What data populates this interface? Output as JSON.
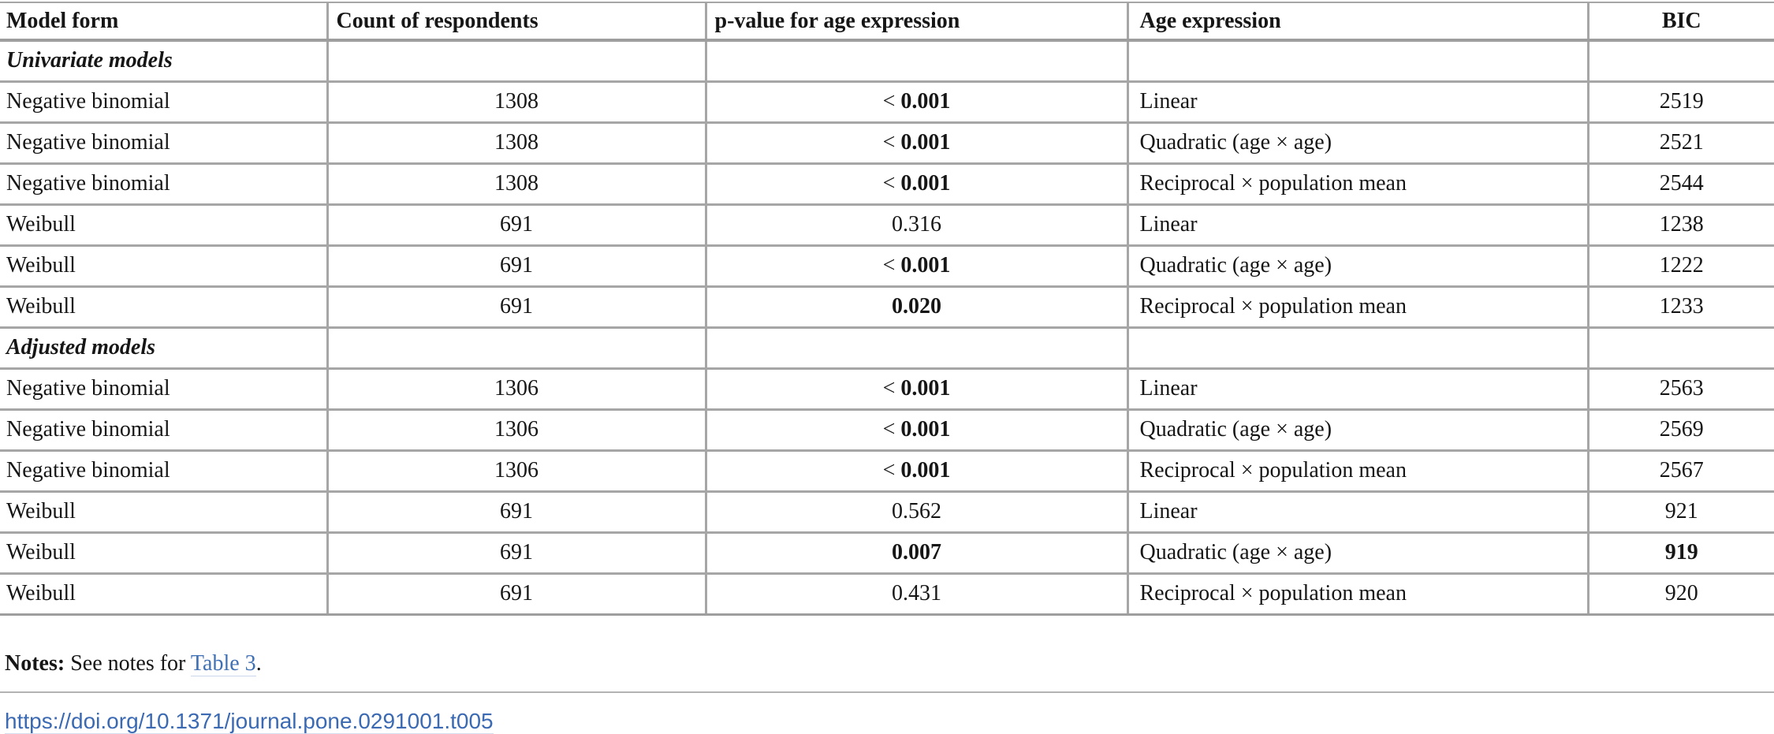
{
  "colors": {
    "border_gray": "#a6a6a6",
    "text": "#161616",
    "link_blue": "#4070b4",
    "doi_blue": "#3b6ab3",
    "background": "#ffffff"
  },
  "table": {
    "columns": [
      {
        "id": "model",
        "label": "Model form"
      },
      {
        "id": "count",
        "label": "Count of respondents"
      },
      {
        "id": "p",
        "label": "p-value for age expression"
      },
      {
        "id": "age",
        "label": "Age expression"
      },
      {
        "id": "bic",
        "label": "BIC"
      }
    ],
    "rows": [
      {
        "type": "section",
        "label": "Univariate models"
      },
      {
        "type": "data",
        "model": "Negative binomial",
        "count": "1308",
        "p": {
          "prefix": "< ",
          "value": "0.001",
          "bold": true
        },
        "age": "Linear",
        "bic": {
          "value": "2519",
          "bold": false
        }
      },
      {
        "type": "data",
        "model": "Negative binomial",
        "count": "1308",
        "p": {
          "prefix": "< ",
          "value": "0.001",
          "bold": true
        },
        "age": "Quadratic (age × age)",
        "bic": {
          "value": "2521",
          "bold": false
        }
      },
      {
        "type": "data",
        "model": "Negative binomial",
        "count": "1308",
        "p": {
          "prefix": "< ",
          "value": "0.001",
          "bold": true
        },
        "age": "Reciprocal × population mean",
        "bic": {
          "value": "2544",
          "bold": false
        }
      },
      {
        "type": "data",
        "model": "Weibull",
        "count": "691",
        "p": {
          "prefix": "",
          "value": "0.316",
          "bold": false
        },
        "age": "Linear",
        "bic": {
          "value": "1238",
          "bold": false
        }
      },
      {
        "type": "data",
        "model": "Weibull",
        "count": "691",
        "p": {
          "prefix": "< ",
          "value": "0.001",
          "bold": true
        },
        "age": "Quadratic (age × age)",
        "bic": {
          "value": "1222",
          "bold": false
        }
      },
      {
        "type": "data",
        "model": "Weibull",
        "count": "691",
        "p": {
          "prefix": "",
          "value": "0.020",
          "bold": true
        },
        "age": "Reciprocal × population mean",
        "bic": {
          "value": "1233",
          "bold": false
        }
      },
      {
        "type": "section",
        "label": "Adjusted models"
      },
      {
        "type": "data",
        "model": "Negative binomial",
        "count": "1306",
        "p": {
          "prefix": "< ",
          "value": "0.001",
          "bold": true
        },
        "age": "Linear",
        "bic": {
          "value": "2563",
          "bold": false
        }
      },
      {
        "type": "data",
        "model": "Negative binomial",
        "count": "1306",
        "p": {
          "prefix": "< ",
          "value": "0.001",
          "bold": true
        },
        "age": "Quadratic (age × age)",
        "bic": {
          "value": "2569",
          "bold": false
        }
      },
      {
        "type": "data",
        "model": "Negative binomial",
        "count": "1306",
        "p": {
          "prefix": "< ",
          "value": "0.001",
          "bold": true
        },
        "age": "Reciprocal × population mean",
        "bic": {
          "value": "2567",
          "bold": false
        }
      },
      {
        "type": "data",
        "model": "Weibull",
        "count": "691",
        "p": {
          "prefix": "",
          "value": "0.562",
          "bold": false
        },
        "age": "Linear",
        "bic": {
          "value": "921",
          "bold": false
        }
      },
      {
        "type": "data",
        "model": "Weibull",
        "count": "691",
        "p": {
          "prefix": "",
          "value": "0.007",
          "bold": true
        },
        "age": "Quadratic (age × age)",
        "bic": {
          "value": "919",
          "bold": true
        }
      },
      {
        "type": "data",
        "model": "Weibull",
        "count": "691",
        "p": {
          "prefix": "",
          "value": "0.431",
          "bold": false
        },
        "age": "Reciprocal × population mean",
        "bic": {
          "value": "920",
          "bold": false
        }
      }
    ]
  },
  "notes": {
    "prefix": "Notes:",
    "body": " See notes for ",
    "link": "Table 3",
    "suffix": "."
  },
  "doi": "https://doi.org/10.1371/journal.pone.0291001.t005"
}
